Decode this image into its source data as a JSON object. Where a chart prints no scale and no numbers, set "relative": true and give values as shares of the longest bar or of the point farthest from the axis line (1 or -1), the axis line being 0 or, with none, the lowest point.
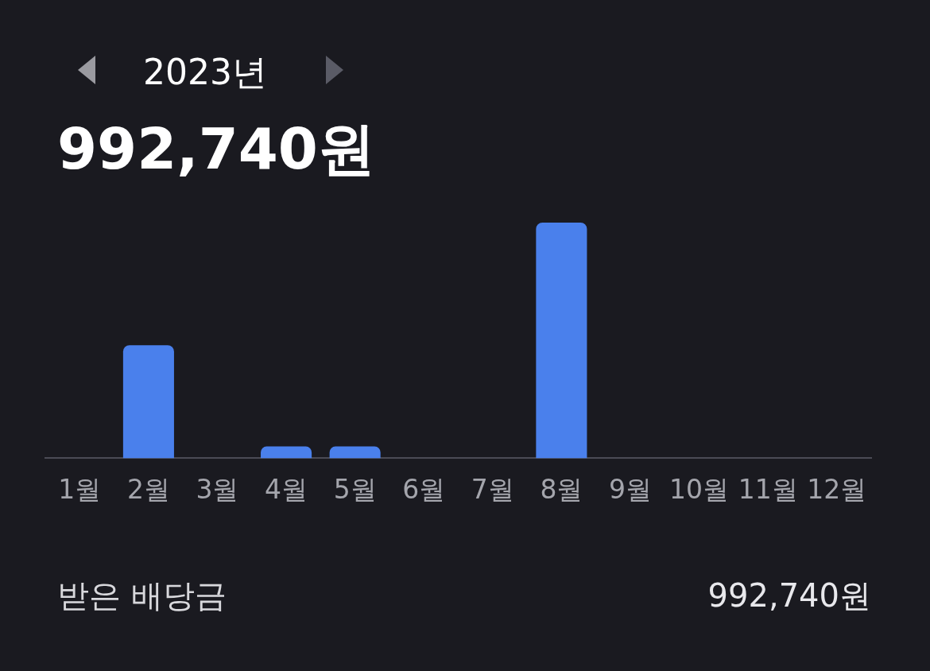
{
  "chart_data": {
    "type": "bar",
    "relative": true,
    "subtitle": "2023년",
    "title": "992,740원",
    "categories": [
      "1월",
      "2월",
      "3월",
      "4월",
      "5월",
      "6월",
      "7월",
      "8월",
      "9월",
      "10월",
      "11월",
      "12월"
    ],
    "values": [
      0,
      0.48,
      0,
      0.05,
      0.05,
      0,
      0,
      1,
      0,
      0,
      0,
      0
    ],
    "color": "#4a80ec",
    "annotations": [
      "받은 배당금",
      "992,740원"
    ],
    "legend": false
  }
}
